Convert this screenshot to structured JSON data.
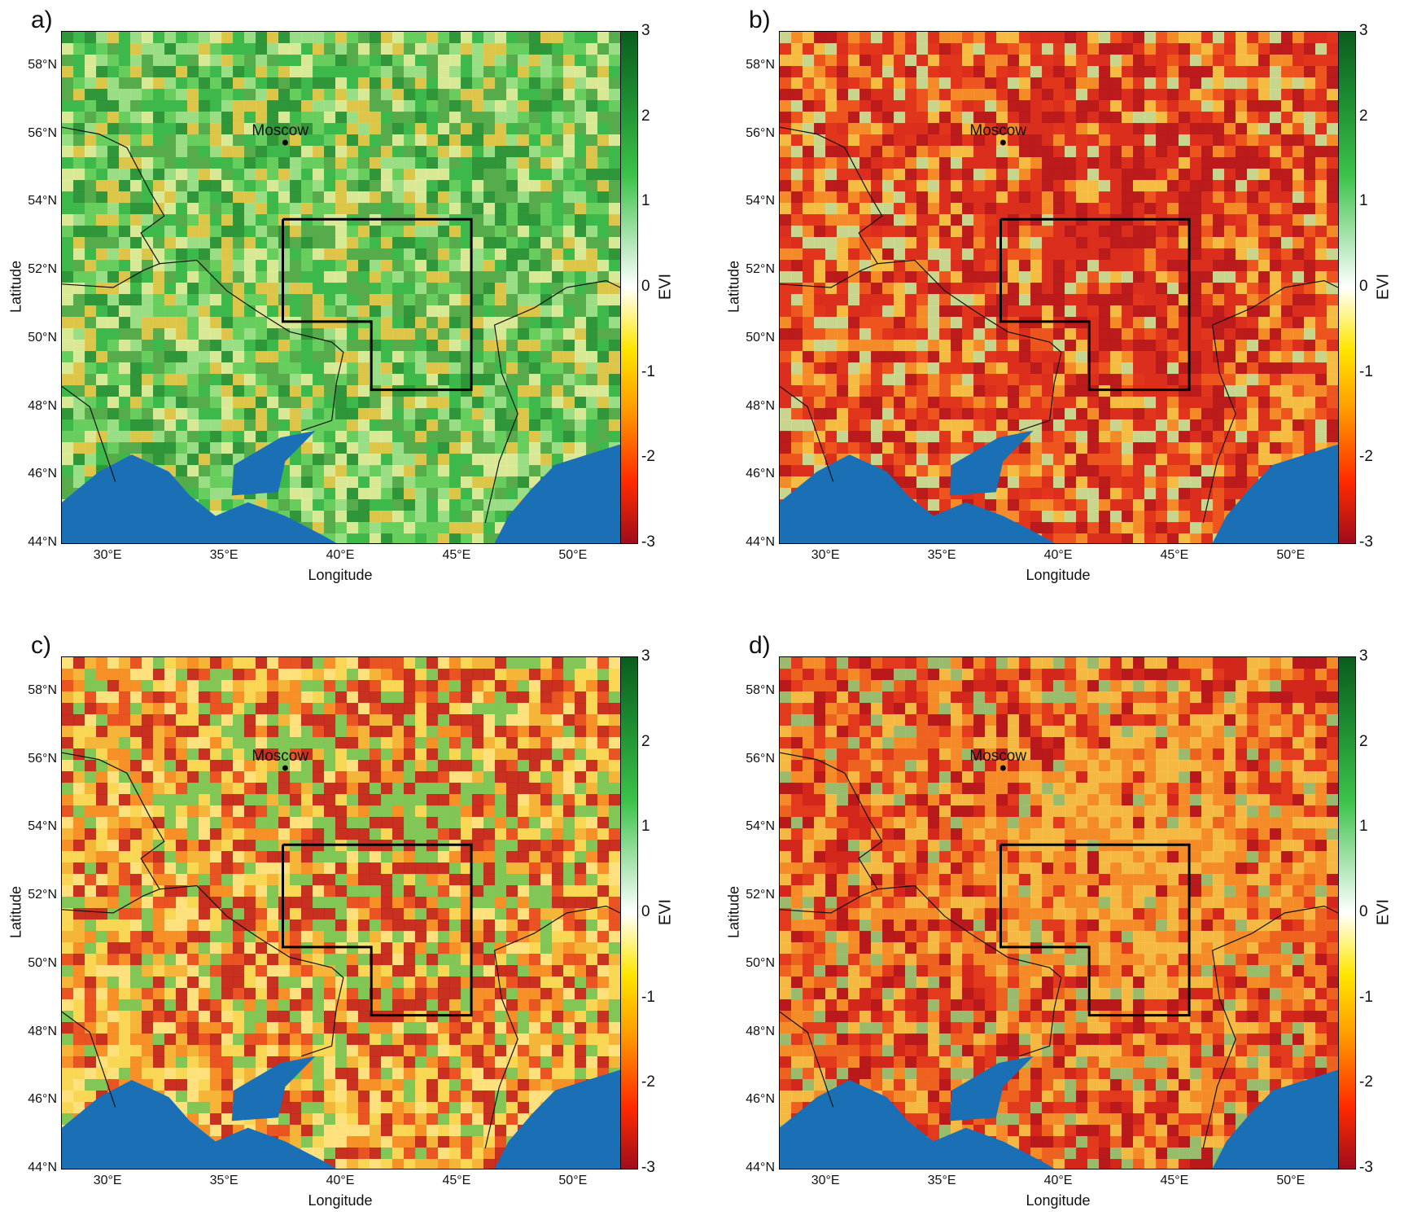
{
  "panels": [
    {
      "letter": "a)",
      "id": "a",
      "palette": [
        "#3cb84a",
        "#6fd160",
        "#a9e38f",
        "#f3f1a3",
        "#f7c84a",
        "#5aa94a",
        "#2d8f36"
      ],
      "hot": 0.22
    },
    {
      "letter": "b)",
      "id": "b",
      "palette": [
        "#e0351c",
        "#f05a1f",
        "#f79a2a",
        "#f8d24a",
        "#d92d1c",
        "#b5161c",
        "#c4f0a0"
      ],
      "hot": 0.75
    },
    {
      "letter": "c)",
      "id": "c",
      "palette": [
        "#f5b53a",
        "#f78a24",
        "#e8431e",
        "#f9dd5a",
        "#6fc95a",
        "#c01a1c",
        "#ffe98a"
      ],
      "hot": 0.6
    },
    {
      "letter": "d)",
      "id": "d",
      "palette": [
        "#e33a1c",
        "#d0241c",
        "#f06a20",
        "#b3141c",
        "#f79a2a",
        "#f8cf4a",
        "#8fd17a"
      ],
      "hot": 0.85
    }
  ],
  "axes": {
    "xlabel": "Longitude",
    "ylabel": "Latitude",
    "lat_ticks": [
      "58°N",
      "56°N",
      "54°N",
      "52°N",
      "50°N",
      "48°N",
      "46°N",
      "44°N"
    ],
    "lon_ticks": [
      "30°E",
      "35°E",
      "40°E",
      "45°E",
      "50°E"
    ]
  },
  "colorbar": {
    "label": "EVI",
    "ticks": [
      "3",
      "2",
      "1",
      "0",
      "-1",
      "-2",
      "-3"
    ],
    "colors": [
      "#0b5d1e",
      "#3cc24a",
      "#ffffff",
      "#ffe600",
      "#ff9a00",
      "#a00d1d"
    ]
  },
  "city": {
    "name": "Moscow"
  },
  "water_color": "#1a6fb5"
}
